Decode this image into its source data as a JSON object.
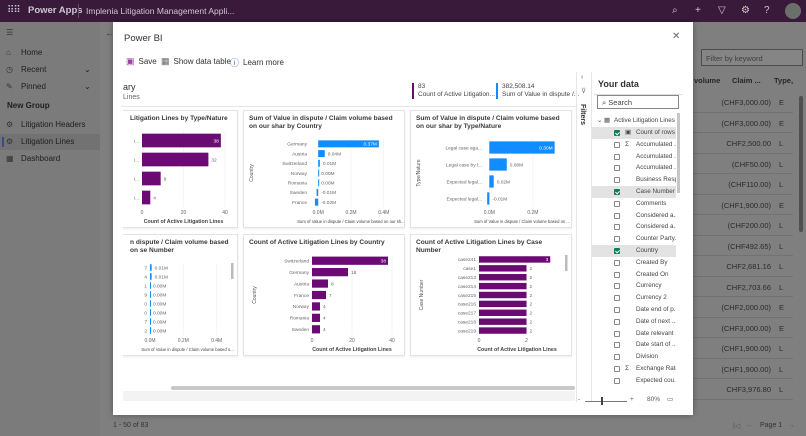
{
  "topbar": {
    "app_name": "Power Apps",
    "app_title": "Implenia Litigation Management Appli...",
    "icons": [
      "waffle-icon",
      "search-icon",
      "plus-icon",
      "filter-icon",
      "settings-icon",
      "help-icon",
      "avatar"
    ]
  },
  "nav": {
    "items": [
      {
        "label": "Home",
        "icon": "home-icon"
      },
      {
        "label": "Recent",
        "icon": "clock-icon"
      },
      {
        "label": "Pinned",
        "icon": "pin-icon"
      }
    ],
    "group": "New Group",
    "group_items": [
      {
        "label": "Litigation Headers",
        "icon": "entity-icon"
      },
      {
        "label": "Litigation Lines",
        "icon": "entity-icon",
        "selected": true
      },
      {
        "label": "Dashboard",
        "icon": "dashboard-icon"
      }
    ]
  },
  "grid": {
    "filter_placeholder": "Filter by keyword",
    "columns": [
      "volume",
      "Claim ...",
      "Type,"
    ],
    "rows": [
      [
        "(CHF3,000.00)",
        "E"
      ],
      [
        "(CHF3,000.00)",
        "E"
      ],
      [
        "CHF2,500.00",
        "L"
      ],
      [
        "(CHF50.00)",
        "L"
      ],
      [
        "(CHF110.00)",
        "L"
      ],
      [
        "(CHF1,900.00)",
        "E"
      ],
      [
        "(CHF200.00)",
        "L"
      ],
      [
        "(CHF492.65)",
        "L"
      ],
      [
        "CHF2,681.16",
        "L"
      ],
      [
        "CHF2,703.66",
        "L"
      ],
      [
        "(CHF2,000.00)",
        "E"
      ],
      [
        "(CHF3,000.00)",
        "E"
      ],
      [
        "(CHF1,900.00)",
        "L"
      ],
      [
        "(CHF1,900.00)",
        "L"
      ],
      [
        "CHF3,976.80",
        "L"
      ]
    ],
    "record_count": "1 - 50 of 83",
    "page": "Page 1"
  },
  "modal": {
    "title": "Power BI",
    "toolbar": {
      "save": "Save",
      "show_data_table": "Show data table",
      "learn_more": "Learn more"
    },
    "summary": {
      "title": "ary",
      "subtitle": "Lines"
    },
    "kpis": [
      {
        "value": "83",
        "label": "Count of Active Litigation..."
      },
      {
        "value": "382,508.14",
        "label": "Sum of Value in dispute /..."
      }
    ],
    "filters_label": "Filters",
    "your_data": {
      "title": "Your data",
      "search_placeholder": "Search",
      "table": "Active Litigation Lines",
      "fields": [
        {
          "name": "Count of rows",
          "checked": true,
          "icon": "calc-icon"
        },
        {
          "name": "Accumulated ...",
          "checked": false,
          "icon": "sigma-icon"
        },
        {
          "name": "Accumulated ...",
          "checked": false
        },
        {
          "name": "Accumulated ...",
          "checked": false
        },
        {
          "name": "Business Resp...",
          "checked": false
        },
        {
          "name": "Case Number",
          "checked": true
        },
        {
          "name": "Comments",
          "checked": false
        },
        {
          "name": "Considered a...",
          "checked": false
        },
        {
          "name": "Considered a...",
          "checked": false
        },
        {
          "name": "Counter Party...",
          "checked": false
        },
        {
          "name": "Country",
          "checked": true
        },
        {
          "name": "Created By",
          "checked": false
        },
        {
          "name": "Created On",
          "checked": false
        },
        {
          "name": "Currency",
          "checked": false
        },
        {
          "name": "Currency 2",
          "checked": false
        },
        {
          "name": "Date end of p...",
          "checked": false
        },
        {
          "name": "Date of next ...",
          "checked": false
        },
        {
          "name": "Date relevant ...",
          "checked": false
        },
        {
          "name": "Date start of ...",
          "checked": false
        },
        {
          "name": "Division",
          "checked": false
        },
        {
          "name": "Exchange Rate",
          "checked": false,
          "icon": "sigma-icon"
        },
        {
          "name": "Expected cou...",
          "checked": false
        }
      ]
    },
    "zoom": {
      "minus": "-",
      "plus": "+",
      "level": "80%",
      "value_percent": 80
    }
  },
  "chart_data": [
    {
      "type": "bar",
      "orientation": "horizontal",
      "title": "Litigation Lines by Type/Nature",
      "categories": [
        "i...",
        "i...",
        "i...",
        "i..."
      ],
      "values": [
        38,
        32,
        9,
        4
      ],
      "value_labels": [
        "38",
        "32",
        "9",
        "4"
      ],
      "xlabel": "Count of Active Litigation Lines",
      "ylabel": "",
      "xlim": [
        0,
        40
      ],
      "xticks": [
        "0",
        "20",
        "40"
      ],
      "color": "#6b0a72"
    },
    {
      "type": "bar",
      "orientation": "horizontal",
      "title": "Sum of Value in dispute / Claim volume based on our shar by Country",
      "categories": [
        "Germany",
        "Austria",
        "Switzerland",
        "Norway",
        "Romania",
        "Sweden",
        "France"
      ],
      "values": [
        0.37,
        0.04,
        0.01,
        0.0,
        0.0,
        -0.01,
        -0.02
      ],
      "value_labels": [
        "0.37M",
        "0.04M",
        "0.01M",
        "0.00M",
        "0.00M",
        "-0.01M",
        "-0.02M"
      ],
      "xlabel": "Sum of Value in dispute / Claim volume based on our sh...",
      "ylabel": "Country",
      "xlim": [
        -0.05,
        0.45
      ],
      "xticks": [
        "0.0M",
        "0.2M",
        "0.4M"
      ],
      "xtick_values": [
        0,
        0.2,
        0.4
      ],
      "color": "#118dff"
    },
    {
      "type": "bar",
      "orientation": "horizontal",
      "title": "Sum of Value in dispute / Claim volume based on our shar by Type/Nature",
      "categories": [
        "Legal case aga...",
        "Legal case by l...",
        "Expected legal...",
        "Expected legal..."
      ],
      "values": [
        0.3,
        0.08,
        0.02,
        -0.01
      ],
      "value_labels": [
        "0.30M",
        "0.08M",
        "0.02M",
        "-0.01M"
      ],
      "xlabel": "Sum of Value in dispute / Claim volume based on ...",
      "ylabel": "Type/Nature",
      "xlim": [
        -0.02,
        0.32
      ],
      "xticks": [
        "0.0M",
        "0.2M"
      ],
      "xtick_values": [
        0,
        0.2
      ],
      "color": "#118dff"
    },
    {
      "type": "bar",
      "orientation": "horizontal",
      "title": "n dispute / Claim volume based on se Number",
      "categories": [
        "7",
        "4",
        "1",
        "9",
        "0",
        "0",
        "7",
        "2"
      ],
      "values": [
        0.01,
        0.01,
        0.0,
        0.0,
        0.0,
        0.0,
        0.0,
        0.0
      ],
      "value_labels": [
        "0.01M",
        "0.01M",
        "0.00M",
        "0.00M",
        "0.00M",
        "0.00M",
        "0.00M",
        "0.00M"
      ],
      "xlabel": "Sum of Value in dispute / Claim volume based o...",
      "ylabel": "",
      "xlim": [
        0,
        0.45
      ],
      "xticks": [
        "0.0M",
        "0.2M",
        "0.4M"
      ],
      "xtick_values": [
        0,
        0.2,
        0.4
      ],
      "color": "#118dff"
    },
    {
      "type": "bar",
      "orientation": "horizontal",
      "title": "Count of Active Litigation Lines by Country",
      "categories": [
        "Switzerland",
        "Germany",
        "Austria",
        "France",
        "Norway",
        "Romania",
        "Sweden"
      ],
      "values": [
        38,
        18,
        8,
        7,
        4,
        4,
        4
      ],
      "value_labels": [
        "38",
        "18",
        "8",
        "7",
        "4",
        "4",
        "4"
      ],
      "xlabel": "Count of Active Litigation Lines",
      "ylabel": "Country",
      "xlim": [
        0,
        40
      ],
      "xticks": [
        "0",
        "20",
        "40"
      ],
      "xtick_values": [
        0,
        20,
        40
      ],
      "color": "#6b0a72"
    },
    {
      "type": "bar",
      "orientation": "horizontal",
      "title": "Count of Active Litigation Lines by Case Number",
      "categories": [
        "case241",
        "case1",
        "case213",
        "case214",
        "case215",
        "case216",
        "case217",
        "case218",
        "case219"
      ],
      "values": [
        3,
        2,
        2,
        2,
        2,
        2,
        2,
        2,
        2
      ],
      "value_labels": [
        "3",
        "2",
        "2",
        "2",
        "2",
        "2",
        "2",
        "2",
        "2"
      ],
      "xlabel": "Count of Active Litigation Lines",
      "ylabel": "Case Number",
      "xlim": [
        0,
        3.2
      ],
      "xticks": [
        "0",
        "2"
      ],
      "xtick_values": [
        0,
        2
      ],
      "color": "#6b0a72"
    }
  ]
}
